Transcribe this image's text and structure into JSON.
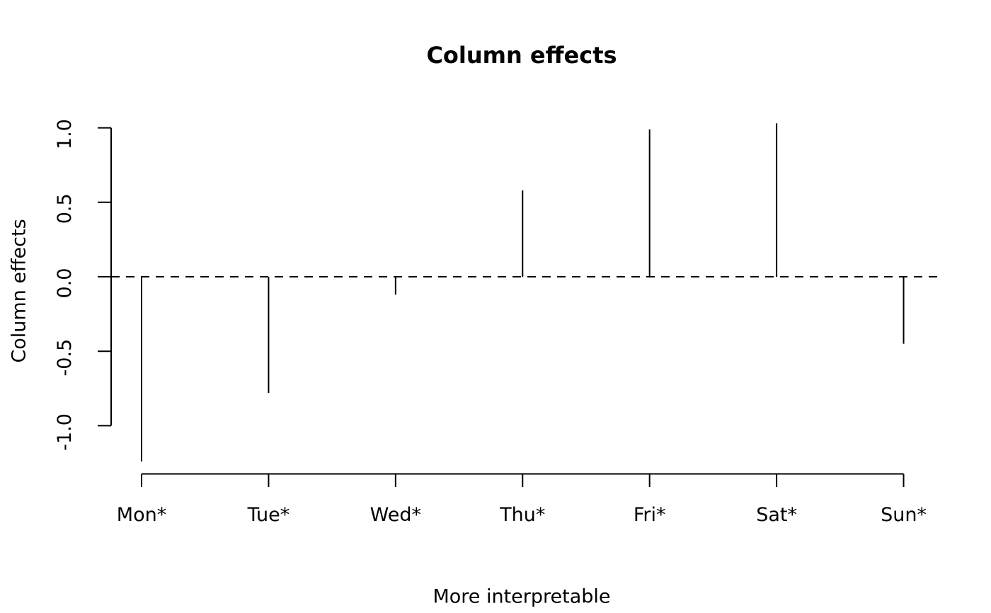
{
  "title": "Column effects",
  "ylabel": "Column effects",
  "xlabel": "More interpretable",
  "colors": {
    "stroke": "#000000",
    "background": "#ffffff"
  },
  "chart_data": {
    "type": "bar",
    "subtype": "spike-plot",
    "title": "Column effects",
    "xlabel": "More interpretable",
    "ylabel": "Column effects",
    "categories": [
      "Mon*",
      "Tue*",
      "Wed*",
      "Thu*",
      "Fri*",
      "Sat*",
      "Sun*"
    ],
    "values": [
      -1.24,
      -0.78,
      -0.12,
      0.58,
      0.99,
      1.03,
      -0.45
    ],
    "ylim": [
      -1.0,
      1.0
    ],
    "yticks": [
      1.0,
      0.5,
      0.0,
      -0.5,
      -1.0
    ],
    "ytick_labels": [
      "1.0",
      "0.5",
      "0.0",
      "-0.5",
      "-1.0"
    ],
    "reference_line": 0,
    "reference_line_style": "dashed",
    "grid": false,
    "legend": "none"
  }
}
